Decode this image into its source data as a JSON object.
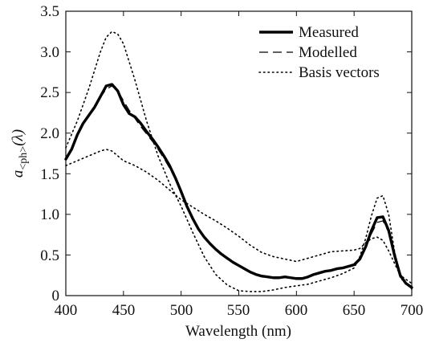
{
  "chart_data": {
    "type": "line",
    "title": "",
    "xlabel": "Wavelength (nm)",
    "ylabel": "a<ph>(λ)",
    "ylabel_parts": {
      "symbol": "a",
      "subscript": "<ph>",
      "arg": "(λ)"
    },
    "xlim": [
      400,
      700
    ],
    "ylim": [
      0,
      3.5
    ],
    "xticks": [
      "400",
      "450",
      "500",
      "550",
      "600",
      "650",
      "700"
    ],
    "yticks": [
      "0",
      "0.5",
      "1.0",
      "1.5",
      "2.0",
      "2.5",
      "3.0",
      "3.5"
    ],
    "grid": false,
    "legend_position": "top-right",
    "legend": [
      "Measured",
      "Modelled",
      "Basis vectors"
    ],
    "series": [
      {
        "name": "Measured",
        "style": "solid-thick",
        "x": [
          400,
          405,
          410,
          415,
          420,
          425,
          430,
          435,
          440,
          445,
          450,
          455,
          460,
          465,
          470,
          475,
          480,
          485,
          490,
          495,
          500,
          505,
          510,
          515,
          520,
          525,
          530,
          535,
          540,
          545,
          550,
          555,
          560,
          565,
          570,
          575,
          580,
          585,
          590,
          595,
          600,
          605,
          610,
          615,
          620,
          625,
          630,
          635,
          640,
          645,
          650,
          655,
          660,
          665,
          670,
          675,
          680,
          685,
          690,
          695,
          700
        ],
        "y": [
          1.68,
          1.8,
          1.98,
          2.12,
          2.22,
          2.32,
          2.45,
          2.58,
          2.6,
          2.52,
          2.35,
          2.24,
          2.2,
          2.12,
          2.02,
          1.93,
          1.83,
          1.72,
          1.6,
          1.45,
          1.28,
          1.1,
          0.95,
          0.82,
          0.72,
          0.64,
          0.57,
          0.51,
          0.46,
          0.41,
          0.37,
          0.33,
          0.29,
          0.26,
          0.24,
          0.23,
          0.22,
          0.22,
          0.23,
          0.22,
          0.21,
          0.21,
          0.23,
          0.26,
          0.28,
          0.3,
          0.31,
          0.33,
          0.34,
          0.36,
          0.38,
          0.45,
          0.6,
          0.8,
          0.96,
          0.97,
          0.8,
          0.5,
          0.25,
          0.15,
          0.1
        ]
      },
      {
        "name": "Modelled",
        "style": "dashed",
        "x": [
          400,
          405,
          410,
          415,
          420,
          425,
          430,
          435,
          440,
          445,
          450,
          455,
          460,
          465,
          470,
          475,
          480,
          485,
          490,
          495,
          500,
          505,
          510,
          515,
          520,
          525,
          530,
          535,
          540,
          545,
          550,
          555,
          560,
          565,
          570,
          575,
          580,
          585,
          590,
          595,
          600,
          605,
          610,
          615,
          620,
          625,
          630,
          635,
          640,
          645,
          650,
          655,
          660,
          665,
          670,
          675,
          680,
          685,
          690,
          695,
          700
        ],
        "y": [
          1.7,
          1.82,
          1.96,
          2.1,
          2.22,
          2.33,
          2.44,
          2.54,
          2.58,
          2.52,
          2.4,
          2.28,
          2.18,
          2.08,
          1.99,
          1.9,
          1.8,
          1.69,
          1.57,
          1.43,
          1.27,
          1.11,
          0.96,
          0.83,
          0.73,
          0.64,
          0.57,
          0.51,
          0.45,
          0.4,
          0.36,
          0.32,
          0.28,
          0.25,
          0.23,
          0.22,
          0.22,
          0.22,
          0.23,
          0.23,
          0.22,
          0.22,
          0.24,
          0.26,
          0.28,
          0.3,
          0.32,
          0.33,
          0.35,
          0.36,
          0.38,
          0.44,
          0.58,
          0.76,
          0.9,
          0.92,
          0.78,
          0.5,
          0.26,
          0.16,
          0.11
        ]
      },
      {
        "name": "Basis vectors",
        "style": "dotted",
        "x": [
          400,
          410,
          420,
          430,
          435,
          440,
          445,
          450,
          460,
          470,
          480,
          490,
          500,
          510,
          520,
          530,
          540,
          550,
          560,
          570,
          580,
          590,
          600,
          610,
          620,
          630,
          640,
          650,
          655,
          660,
          665,
          670,
          675,
          680,
          685,
          690,
          700
        ],
        "y": [
          1.82,
          2.15,
          2.55,
          3.0,
          3.18,
          3.25,
          3.22,
          3.1,
          2.65,
          2.15,
          1.72,
          1.38,
          1.1,
          0.78,
          0.48,
          0.26,
          0.13,
          0.06,
          0.05,
          0.05,
          0.07,
          0.1,
          0.12,
          0.14,
          0.18,
          0.22,
          0.27,
          0.34,
          0.48,
          0.7,
          0.98,
          1.2,
          1.23,
          1.0,
          0.55,
          0.22,
          0.08
        ]
      },
      {
        "name": "Basis vectors",
        "style": "dotted",
        "x": [
          400,
          410,
          420,
          430,
          435,
          440,
          445,
          450,
          460,
          470,
          480,
          490,
          500,
          510,
          520,
          530,
          540,
          550,
          560,
          570,
          580,
          590,
          600,
          610,
          620,
          630,
          640,
          650,
          655,
          660,
          665,
          670,
          675,
          680,
          685,
          690,
          700
        ],
        "y": [
          1.6,
          1.66,
          1.72,
          1.78,
          1.8,
          1.78,
          1.72,
          1.66,
          1.6,
          1.52,
          1.42,
          1.3,
          1.18,
          1.09,
          1.0,
          0.92,
          0.83,
          0.73,
          0.62,
          0.53,
          0.48,
          0.45,
          0.42,
          0.46,
          0.5,
          0.54,
          0.55,
          0.56,
          0.58,
          0.65,
          0.7,
          0.72,
          0.68,
          0.55,
          0.4,
          0.25,
          0.15
        ]
      }
    ]
  }
}
